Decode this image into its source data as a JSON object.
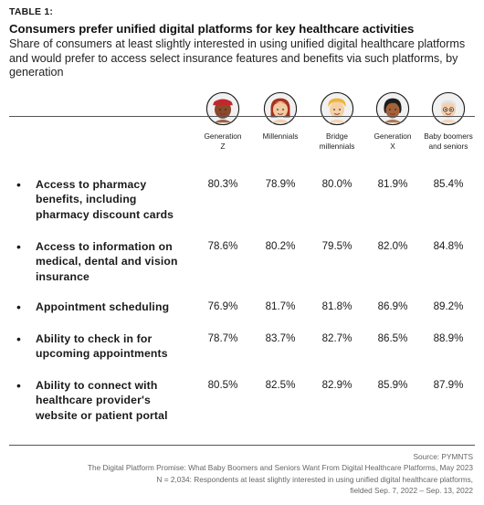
{
  "header": {
    "table_label": "TABLE 1:",
    "title": "Consumers prefer unified digital platforms for key healthcare activities",
    "subtitle": "Share of consumers at least slightly interested in using unified digital healthcare platforms and would prefer to access select insurance features and benefits via such platforms, by generation"
  },
  "generations": [
    {
      "label_line1": "Generation",
      "label_line2": "Z",
      "icon": "generation-z-avatar-icon",
      "skin": "#8b4a2b",
      "hair": "#c0282d"
    },
    {
      "label_line1": "Millennials",
      "label_line2": "",
      "icon": "millennials-avatar-icon",
      "skin": "#f2c9a0",
      "hair": "#a8321f"
    },
    {
      "label_line1": "Bridge",
      "label_line2": "millennials",
      "icon": "bridge-millennials-avatar-icon",
      "skin": "#f6cfa3",
      "hair": "#f0b43a"
    },
    {
      "label_line1": "Generation",
      "label_line2": "X",
      "icon": "generation-x-avatar-icon",
      "skin": "#a5623a",
      "hair": "#1c1c1c"
    },
    {
      "label_line1": "Baby boomers",
      "label_line2": "and seniors",
      "icon": "baby-boomers-avatar-icon",
      "skin": "#f4d0ae",
      "hair": "#e3e3e3"
    }
  ],
  "rows": [
    {
      "label": "Access to pharmacy benefits, including pharmacy discount cards",
      "values": [
        "80.3%",
        "78.9%",
        "80.0%",
        "81.9%",
        "85.4%"
      ]
    },
    {
      "label": "Access to information on medical, dental and vision insurance",
      "values": [
        "78.6%",
        "80.2%",
        "79.5%",
        "82.0%",
        "84.8%"
      ]
    },
    {
      "label": "Appointment scheduling",
      "values": [
        "76.9%",
        "81.7%",
        "81.8%",
        "86.9%",
        "89.2%"
      ]
    },
    {
      "label": "Ability to check in for upcoming appointments",
      "values": [
        "78.7%",
        "83.7%",
        "82.7%",
        "86.5%",
        "88.9%"
      ]
    },
    {
      "label": "Ability to connect with healthcare provider's website or patient portal",
      "values": [
        "80.5%",
        "82.5%",
        "82.9%",
        "85.9%",
        "87.9%"
      ]
    }
  ],
  "bullet": "•",
  "footer": {
    "source": "Source: PYMNTS",
    "report": "The Digital Platform Promise: What Baby Boomers and Seniors Want From Digital Healthcare Platforms, May 2023",
    "sample_line1": "N = 2,034: Respondents at least slightly interested in using unified digital healthcare platforms,",
    "sample_line2": "fielded Sep. 7, 2022 – Sep. 13, 2022"
  },
  "colors": {
    "avatar_circle": "#f1f1f1",
    "avatar_ring": "#222222"
  }
}
